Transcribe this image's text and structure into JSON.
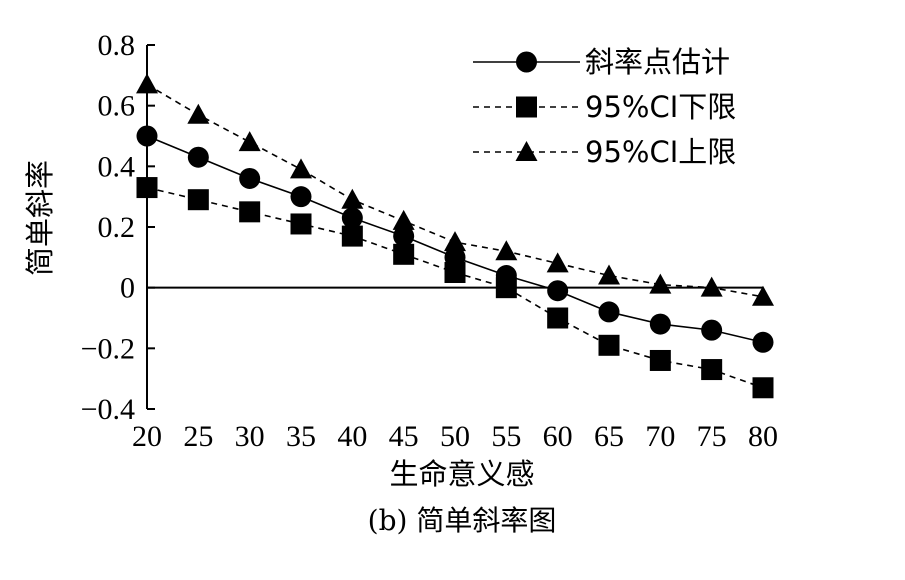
{
  "chart_data": {
    "type": "line",
    "caption": "(b) 简单斜率图",
    "xlabel": "生命意义感",
    "ylabel": "简单斜率",
    "x": [
      20,
      25,
      30,
      35,
      40,
      45,
      50,
      55,
      60,
      65,
      70,
      75,
      80
    ],
    "xlim": [
      20,
      80
    ],
    "ylim": [
      -0.4,
      0.8
    ],
    "x_ticks": [
      "20",
      "25",
      "30",
      "35",
      "40",
      "45",
      "50",
      "55",
      "60",
      "65",
      "70",
      "75",
      "80"
    ],
    "y_ticks": [
      {
        "value": 0.8,
        "label": "0.8"
      },
      {
        "value": 0.6,
        "label": "0.6"
      },
      {
        "value": 0.4,
        "label": "0.4"
      },
      {
        "value": 0.2,
        "label": "0.2"
      },
      {
        "value": 0,
        "label": "0"
      },
      {
        "value": -0.2,
        "label": "−0.2"
      },
      {
        "value": -0.4,
        "label": "−0.4"
      }
    ],
    "legend_position": "top-right",
    "grid": false,
    "series": [
      {
        "name": "斜率点估计",
        "marker": "circle",
        "line": "solid",
        "values": [
          0.5,
          0.43,
          0.36,
          0.3,
          0.23,
          0.17,
          0.1,
          0.04,
          -0.01,
          -0.08,
          -0.12,
          -0.14,
          -0.18
        ]
      },
      {
        "name": "95%CI下限",
        "marker": "square",
        "line": "dashed",
        "values": [
          0.33,
          0.29,
          0.25,
          0.21,
          0.17,
          0.11,
          0.05,
          0.0,
          -0.1,
          -0.19,
          -0.24,
          -0.27,
          -0.33
        ]
      },
      {
        "name": "95%CI上限",
        "marker": "triangle",
        "line": "dashed",
        "values": [
          0.67,
          0.57,
          0.48,
          0.39,
          0.29,
          0.22,
          0.15,
          0.12,
          0.08,
          0.04,
          0.01,
          0.0,
          -0.03
        ]
      }
    ]
  }
}
